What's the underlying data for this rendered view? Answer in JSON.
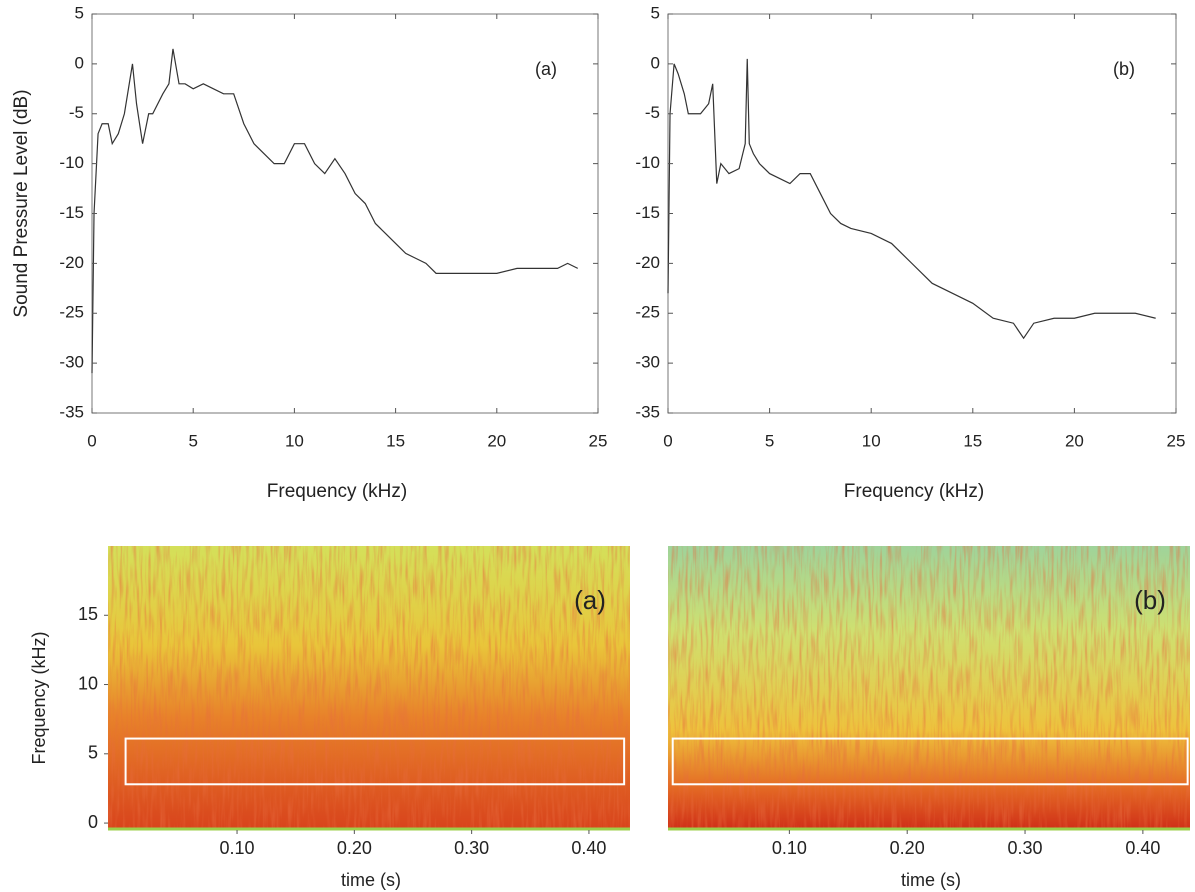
{
  "chart_data": [
    {
      "type": "line",
      "annotation": "(a)",
      "xlabel": "Frequency (kHz)",
      "ylabel": "Sound Pressure Level (dB)",
      "color": "#333333",
      "x": [
        0,
        0.1,
        0.3,
        0.5,
        0.8,
        1.0,
        1.3,
        1.6,
        2.0,
        2.2,
        2.5,
        2.8,
        3.0,
        3.5,
        3.8,
        4.0,
        4.3,
        4.6,
        5,
        5.5,
        6,
        6.5,
        7,
        7.5,
        8,
        8.5,
        9,
        9.5,
        10,
        10.5,
        11,
        11.5,
        12,
        12.5,
        13,
        13.5,
        14,
        14.5,
        15,
        15.5,
        16,
        16.5,
        17,
        18,
        19,
        20,
        21,
        22,
        23,
        23.5,
        24
      ],
      "values": [
        -31,
        -15,
        -7,
        -6,
        -6,
        -8,
        -7,
        -5,
        0,
        -4,
        -8,
        -5,
        -5,
        -3,
        -2,
        1.5,
        -2,
        -2,
        -2.5,
        -2,
        -2.5,
        -3,
        -3,
        -6,
        -8,
        -9,
        -10,
        -10,
        -8,
        -8,
        -10,
        -11,
        -9.5,
        -11,
        -13,
        -14,
        -16,
        -17,
        -18,
        -19,
        -19.5,
        -20,
        -21,
        -21,
        -21,
        -21,
        -20.5,
        -20.5,
        -20.5,
        -20,
        -20.5
      ],
      "xlim": [
        0,
        25
      ],
      "ylim": [
        -35,
        5
      ],
      "xticks": [
        0,
        5,
        10,
        15,
        20,
        25
      ],
      "yticks": [
        -35,
        -30,
        -25,
        -20,
        -15,
        -10,
        -5,
        0,
        5
      ]
    },
    {
      "type": "line",
      "annotation": "(b)",
      "xlabel": "Frequency (kHz)",
      "color": "#333333",
      "x": [
        0,
        0.1,
        0.3,
        0.5,
        0.8,
        1.0,
        1.3,
        1.6,
        2.0,
        2.2,
        2.4,
        2.6,
        3.0,
        3.5,
        3.8,
        3.9,
        4.0,
        4.2,
        4.5,
        5,
        5.5,
        6,
        6.5,
        7,
        7.5,
        8,
        8.5,
        9,
        10,
        11,
        12,
        13,
        14,
        15,
        16,
        17,
        17.5,
        18,
        19,
        20,
        21,
        22,
        23,
        24
      ],
      "values": [
        -23,
        -5,
        0,
        -1,
        -3,
        -5,
        -5,
        -5,
        -4,
        -2,
        -12,
        -10,
        -11,
        -10.5,
        -8,
        0.5,
        -8,
        -9,
        -10,
        -11,
        -11.5,
        -12,
        -11,
        -11,
        -13,
        -15,
        -16,
        -16.5,
        -17,
        -18,
        -20,
        -22,
        -23,
        -24,
        -25.5,
        -26,
        -27.5,
        -26,
        -25.5,
        -25.5,
        -25,
        -25,
        -25,
        -25.5
      ],
      "xlim": [
        0,
        25
      ],
      "ylim": [
        -35,
        5
      ],
      "xticks": [
        0,
        5,
        10,
        15,
        20,
        25
      ],
      "yticks": [
        -35,
        -30,
        -25,
        -20,
        -15,
        -10,
        -5,
        0,
        5
      ]
    },
    {
      "type": "spectrogram",
      "annotation": "(a)",
      "xlabel": "time (s)",
      "ylabel": "Frequency (kHz)",
      "xlim": [
        -0.01,
        0.435
      ],
      "ylim": [
        -0.5,
        20
      ],
      "xticks": [
        {
          "value": 0.1,
          "label": "0.10"
        },
        {
          "value": 0.2,
          "label": "0.20"
        },
        {
          "value": 0.3,
          "label": "0.30"
        },
        {
          "value": 0.4,
          "label": "0.40"
        }
      ],
      "yticks": [
        0,
        5,
        10,
        15
      ],
      "highlight": {
        "time": [
          0.005,
          0.43
        ],
        "frequency": [
          2.8,
          6.1
        ]
      }
    },
    {
      "type": "spectrogram",
      "annotation": "(b)",
      "xlabel": "time (s)",
      "xlim": [
        -0.003,
        0.44
      ],
      "ylim": [
        -0.5,
        20
      ],
      "xticks": [
        {
          "value": 0.1,
          "label": "0.10"
        },
        {
          "value": 0.2,
          "label": "0.20"
        },
        {
          "value": 0.3,
          "label": "0.30"
        },
        {
          "value": 0.4,
          "label": "0.40"
        }
      ],
      "highlight": {
        "time": [
          0.001,
          0.438
        ],
        "frequency": [
          2.8,
          6.1
        ]
      }
    }
  ]
}
